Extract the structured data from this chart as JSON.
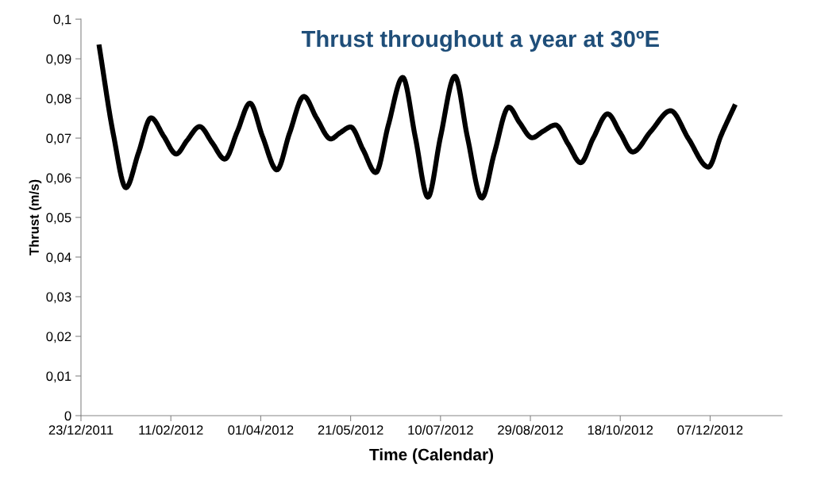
{
  "chart_data": {
    "type": "line",
    "title": "Thrust throughout a year at 30ºE",
    "xlabel": "Time (Calendar)",
    "ylabel": "Thrust (m/s)",
    "x": [
      "2012-01-02",
      "2012-01-10",
      "2012-01-17",
      "2012-01-24",
      "2012-01-31",
      "2012-02-07",
      "2012-02-14",
      "2012-02-20",
      "2012-02-27",
      "2012-03-05",
      "2012-03-12",
      "2012-03-19",
      "2012-03-26",
      "2012-04-02",
      "2012-04-10",
      "2012-04-17",
      "2012-04-25",
      "2012-05-02",
      "2012-05-10",
      "2012-05-15",
      "2012-05-21",
      "2012-05-28",
      "2012-06-04",
      "2012-06-11",
      "2012-06-19",
      "2012-06-26",
      "2012-07-03",
      "2012-07-10",
      "2012-07-18",
      "2012-07-25",
      "2012-08-02",
      "2012-08-09",
      "2012-08-17",
      "2012-08-23",
      "2012-08-30",
      "2012-09-05",
      "2012-09-12",
      "2012-09-19",
      "2012-09-26",
      "2012-10-03",
      "2012-10-11",
      "2012-10-18",
      "2012-10-25",
      "2012-11-04",
      "2012-11-15",
      "2012-11-25",
      "2012-12-06",
      "2012-12-13",
      "2012-12-21"
    ],
    "series": [
      {
        "color": "#000000",
        "values": [
          0.0936,
          0.071,
          0.0575,
          0.0663,
          0.0751,
          0.0705,
          0.066,
          0.0694,
          0.0729,
          0.0688,
          0.0647,
          0.0717,
          0.0788,
          0.0704,
          0.062,
          0.0712,
          0.0805,
          0.0751,
          0.0698,
          0.0713,
          0.0728,
          0.067,
          0.0613,
          0.0733,
          0.0853,
          0.0702,
          0.0551,
          0.0703,
          0.0856,
          0.0702,
          0.0549,
          0.0663,
          0.0778,
          0.0739,
          0.0701,
          0.0717,
          0.0733,
          0.0685,
          0.0638,
          0.07,
          0.0761,
          0.0713,
          0.0665,
          0.0717,
          0.0769,
          0.0698,
          0.0627,
          0.0706,
          0.0785
        ]
      }
    ],
    "xlim": [
      "2011-12-23",
      "2013-01-16"
    ],
    "xticks": [
      {
        "value": "2011-12-23",
        "label": "23/12/2011"
      },
      {
        "value": "2012-02-11",
        "label": "11/02/2012"
      },
      {
        "value": "2012-04-01",
        "label": "01/04/2012"
      },
      {
        "value": "2012-05-21",
        "label": "21/05/2012"
      },
      {
        "value": "2012-07-10",
        "label": "10/07/2012"
      },
      {
        "value": "2012-08-29",
        "label": "29/08/2012"
      },
      {
        "value": "2012-10-18",
        "label": "18/10/2012"
      },
      {
        "value": "2012-12-07",
        "label": "07/12/2012"
      }
    ],
    "ylim": [
      0,
      0.1
    ],
    "yticks": [
      {
        "value": 0,
        "label": "0"
      },
      {
        "value": 0.01,
        "label": "0,01"
      },
      {
        "value": 0.02,
        "label": "0,02"
      },
      {
        "value": 0.03,
        "label": "0,03"
      },
      {
        "value": 0.04,
        "label": "0,04"
      },
      {
        "value": 0.05,
        "label": "0,05"
      },
      {
        "value": 0.06,
        "label": "0,06"
      },
      {
        "value": 0.07,
        "label": "0,07"
      },
      {
        "value": 0.08,
        "label": "0,08"
      },
      {
        "value": 0.09,
        "label": "0,09"
      },
      {
        "value": 0.1,
        "label": "0,1"
      }
    ],
    "grid": false,
    "legend": false,
    "marker": "none",
    "line_style": "solid"
  }
}
